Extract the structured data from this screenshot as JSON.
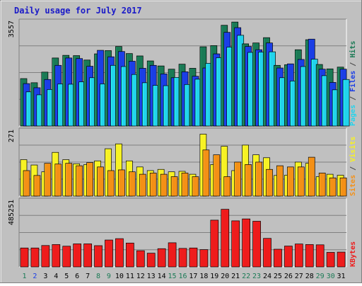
{
  "title": "Daily usage for July 2017",
  "chart_data": [
    {
      "type": "bar",
      "panel": "top",
      "categories": [
        "1",
        "2",
        "3",
        "4",
        "5",
        "6",
        "7",
        "8",
        "9",
        "10",
        "11",
        "12",
        "13",
        "14",
        "15",
        "16",
        "17",
        "18",
        "19",
        "20",
        "21",
        "22",
        "23",
        "24",
        "25",
        "26",
        "27",
        "28",
        "29",
        "30",
        "31"
      ],
      "ymax_label": "3557",
      "ylim": [
        0,
        3557
      ],
      "series": [
        {
          "name": "Hits",
          "color": "#1a7a55",
          "values": [
            1610,
            1470,
            1830,
            2310,
            2400,
            2390,
            2240,
            2450,
            2560,
            2700,
            2460,
            2380,
            2210,
            2040,
            1930,
            2100,
            1960,
            2690,
            2730,
            3420,
            3530,
            2790,
            2820,
            3000,
            2060,
            2080,
            2590,
            2930,
            2090,
            1940,
            2000
          ]
        },
        {
          "name": "Files",
          "color": "#1b3ee6",
          "values": [
            1440,
            1300,
            1580,
            2060,
            2310,
            2290,
            2030,
            2570,
            2350,
            2530,
            2200,
            1960,
            2060,
            1770,
            1640,
            1840,
            1690,
            1970,
            2450,
            3180,
            3340,
            2700,
            2590,
            2820,
            1970,
            2110,
            2260,
            2950,
            1930,
            1480,
            1930
          ]
        },
        {
          "name": "Pages",
          "color": "#22d3ec",
          "values": [
            1160,
            1060,
            1240,
            1430,
            1420,
            1500,
            1640,
            1430,
            2060,
            2020,
            1750,
            1470,
            1380,
            1370,
            1650,
            1410,
            1590,
            2130,
            2320,
            2680,
            3080,
            2500,
            2510,
            2520,
            1640,
            1530,
            2020,
            2270,
            1710,
            1230,
            1580
          ]
        }
      ]
    },
    {
      "type": "bar",
      "panel": "middle",
      "categories": [
        "1",
        "2",
        "3",
        "4",
        "5",
        "6",
        "7",
        "8",
        "9",
        "10",
        "11",
        "12",
        "13",
        "14",
        "15",
        "16",
        "17",
        "18",
        "19",
        "20",
        "21",
        "22",
        "23",
        "24",
        "25",
        "26",
        "27",
        "28",
        "29",
        "30",
        "31"
      ],
      "ymax_label": "271",
      "ylim": [
        0,
        271
      ],
      "series": [
        {
          "name": "Visits",
          "color": "#f7f224",
          "values": [
            150,
            128,
            100,
            180,
            150,
            133,
            130,
            145,
            195,
            215,
            145,
            120,
            105,
            110,
            100,
            102,
            90,
            255,
            130,
            205,
            105,
            210,
            170,
            158,
            85,
            86,
            140,
            135,
            80,
            90,
            86
          ]
        },
        {
          "name": "Sites",
          "color": "#f49016",
          "values": [
            105,
            85,
            135,
            132,
            135,
            125,
            138,
            120,
            105,
            108,
            100,
            90,
            95,
            90,
            80,
            95,
            80,
            190,
            170,
            80,
            140,
            130,
            140,
            110,
            125,
            120,
            120,
            160,
            95,
            75,
            75
          ]
        }
      ]
    },
    {
      "type": "bar",
      "panel": "bottom",
      "categories": [
        "1",
        "2",
        "3",
        "4",
        "5",
        "6",
        "7",
        "8",
        "9",
        "10",
        "11",
        "12",
        "13",
        "14",
        "15",
        "16",
        "17",
        "18",
        "19",
        "20",
        "21",
        "22",
        "23",
        "24",
        "25",
        "26",
        "27",
        "28",
        "29",
        "30",
        "31"
      ],
      "ymax_label": "485251",
      "ylim": [
        0,
        485251
      ],
      "series": [
        {
          "name": "KBytes",
          "color": "#ee1c1c",
          "values": [
            138000,
            138000,
            156000,
            163000,
            151000,
            168000,
            168000,
            155000,
            196000,
            206000,
            174000,
            118000,
            100000,
            133000,
            176000,
            135000,
            138000,
            126000,
            341000,
            420000,
            336000,
            350000,
            333000,
            208000,
            129000,
            152000,
            167000,
            163000,
            161000,
            106000,
            108000
          ]
        }
      ]
    }
  ],
  "x_label_colors": [
    "#1a7a55",
    "#1b3ee6",
    "#000000",
    "#000000",
    "#000000",
    "#000000",
    "#000000",
    "#1a7a55",
    "#1a7a55",
    "#000000",
    "#000000",
    "#000000",
    "#000000",
    "#000000",
    "#1a7a55",
    "#1a7a55",
    "#000000",
    "#000000",
    "#000000",
    "#000000",
    "#000000",
    "#1a7a55",
    "#1a7a55",
    "#000000",
    "#000000",
    "#000000",
    "#000000",
    "#000000",
    "#1a7a55",
    "#1a7a55",
    "#000000"
  ],
  "legend_top": [
    {
      "text": "Pages",
      "color": "#22d3ec"
    },
    {
      "text": " / ",
      "color": "#444444"
    },
    {
      "text": "Files",
      "color": "#1b3ee6"
    },
    {
      "text": " / ",
      "color": "#444444"
    },
    {
      "text": "Hits",
      "color": "#1a7a55"
    }
  ],
  "legend_middle": [
    {
      "text": "Sites",
      "color": "#f49016"
    },
    {
      "text": " / ",
      "color": "#444444"
    },
    {
      "text": "Visits",
      "color": "#f7f224"
    }
  ],
  "legend_bottom": [
    {
      "text": "KBytes",
      "color": "#ee1c1c"
    }
  ],
  "colors": {
    "panel_bg": "#c0c0c0",
    "page_bg": "#c0c0c0",
    "grid": "#808080"
  }
}
